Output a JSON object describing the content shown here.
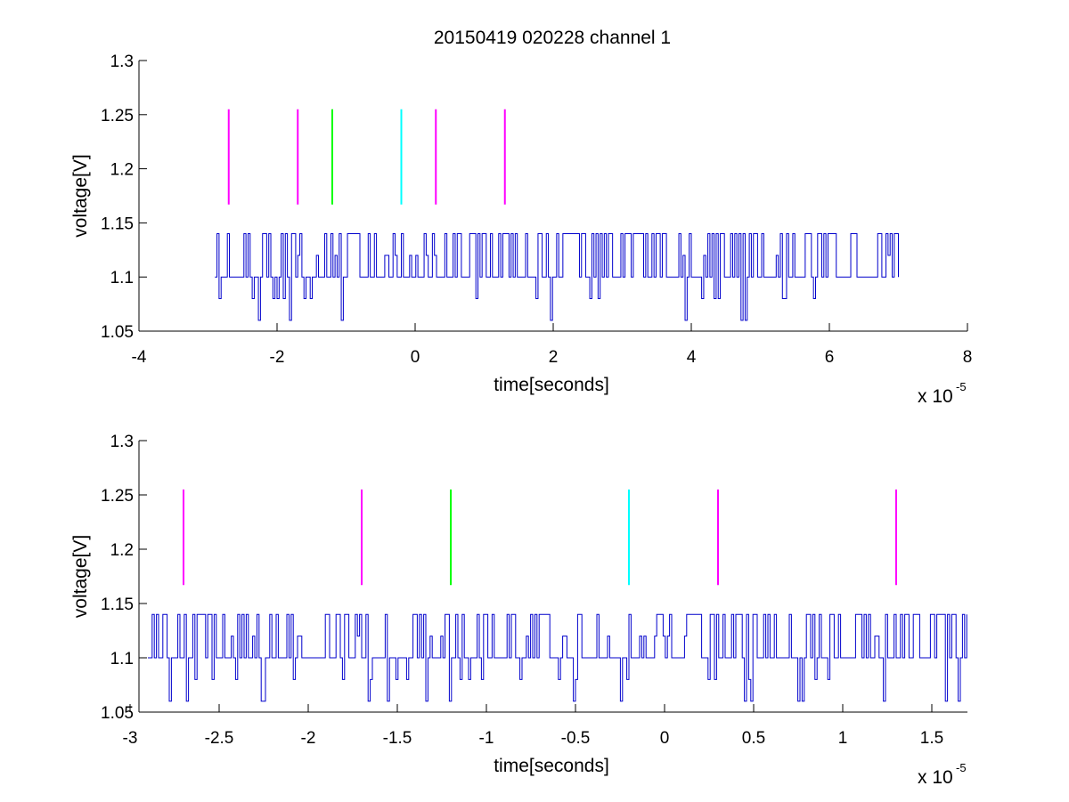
{
  "figure": {
    "title": "20150419 020228 channel 1"
  },
  "chart_data": [
    {
      "type": "line",
      "xlabel": "time[seconds]",
      "ylabel": "voltage[V]",
      "x_exponent_label": "x 10",
      "x_exponent_power": "-5",
      "xlim": [
        -4,
        8
      ],
      "ylim": [
        1.05,
        1.3
      ],
      "x_ticks": [
        -4,
        -2,
        0,
        2,
        4,
        6,
        8
      ],
      "x_tick_labels": [
        "-4",
        "-2",
        "0",
        "2",
        "4",
        "6",
        "8"
      ],
      "y_ticks": [
        1.05,
        1.1,
        1.15,
        1.2,
        1.25,
        1.3
      ],
      "y_tick_labels": [
        "1.05",
        "1.1",
        "1.15",
        "1.2",
        "1.25",
        "1.3"
      ],
      "grid": false,
      "series": [
        {
          "color": "#0000cc",
          "x_range": [
            -2.9,
            7.0
          ],
          "baseline": 1.1,
          "levels": [
            1.06,
            1.08,
            1.1,
            1.12,
            1.14
          ]
        }
      ],
      "markers": [
        {
          "x": -2.7,
          "y0": 1.167,
          "y1": 1.255,
          "color": "#ff00ff"
        },
        {
          "x": -1.7,
          "y0": 1.167,
          "y1": 1.255,
          "color": "#ff00ff"
        },
        {
          "x": -1.2,
          "y0": 1.167,
          "y1": 1.255,
          "color": "#00ff00"
        },
        {
          "x": -0.2,
          "y0": 1.167,
          "y1": 1.255,
          "color": "#00ffff"
        },
        {
          "x": 0.3,
          "y0": 1.167,
          "y1": 1.255,
          "color": "#ff00ff"
        },
        {
          "x": 1.3,
          "y0": 1.167,
          "y1": 1.255,
          "color": "#ff00ff"
        }
      ]
    },
    {
      "type": "line",
      "xlabel": "time[seconds]",
      "ylabel": "voltage[V]",
      "x_exponent_label": "x 10",
      "x_exponent_power": "-5",
      "xlim": [
        -2.95,
        1.7
      ],
      "ylim": [
        1.05,
        1.3
      ],
      "x_ticks": [
        -3,
        -2.5,
        -2,
        -1.5,
        -1,
        -0.5,
        0,
        0.5,
        1,
        1.5
      ],
      "x_tick_labels": [
        "-3",
        "-2.5",
        "-2",
        "-1.5",
        "-1",
        "-0.5",
        "0",
        "0.5",
        "1",
        "1.5"
      ],
      "y_ticks": [
        1.05,
        1.1,
        1.15,
        1.2,
        1.25,
        1.3
      ],
      "y_tick_labels": [
        "1.05",
        "1.1",
        "1.15",
        "1.2",
        "1.25",
        "1.3"
      ],
      "grid": false,
      "series": [
        {
          "color": "#0000cc",
          "x_range": [
            -2.9,
            1.7
          ],
          "baseline": 1.1,
          "levels": [
            1.06,
            1.08,
            1.1,
            1.12,
            1.14
          ]
        }
      ],
      "markers": [
        {
          "x": -2.7,
          "y0": 1.167,
          "y1": 1.255,
          "color": "#ff00ff"
        },
        {
          "x": -1.7,
          "y0": 1.167,
          "y1": 1.255,
          "color": "#ff00ff"
        },
        {
          "x": -1.2,
          "y0": 1.167,
          "y1": 1.255,
          "color": "#00ff00"
        },
        {
          "x": -0.2,
          "y0": 1.167,
          "y1": 1.255,
          "color": "#00ffff"
        },
        {
          "x": 0.3,
          "y0": 1.167,
          "y1": 1.255,
          "color": "#ff00ff"
        },
        {
          "x": 1.3,
          "y0": 1.167,
          "y1": 1.255,
          "color": "#ff00ff"
        }
      ]
    }
  ]
}
